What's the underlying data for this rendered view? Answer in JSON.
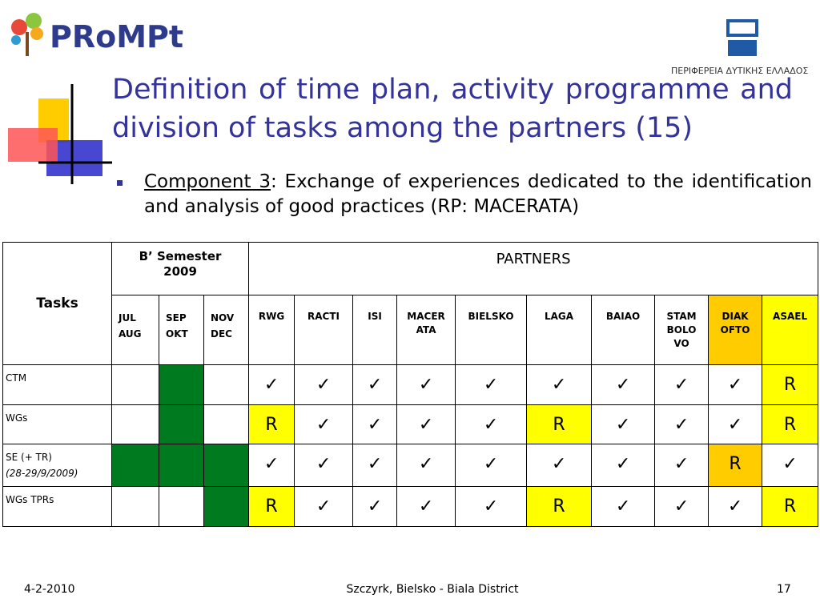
{
  "header": {
    "logo": "PRoMPt",
    "region": "ΠΕΡΙΦΕΡΕΙΑ ΔΥΤΙΚΗΣ ΕΛΛΑΔΟΣ",
    "title": "Definition of time plan, activity programme and division of tasks among the partners (15)"
  },
  "bullet": {
    "link": "Component 3",
    "text": ": Exchange of experiences dedicated to the identification and analysis of good practices (RP: MACERATA)"
  },
  "table": {
    "tasks_header": "Tasks",
    "semester_header": [
      "B’  Semester",
      "2009"
    ],
    "partners_header": "PARTNERS",
    "months": [
      [
        "JUL",
        "AUG"
      ],
      [
        "SEP",
        "OKT"
      ],
      [
        "NOV",
        "DEC"
      ]
    ],
    "partners": [
      {
        "name": [
          "RWG"
        ]
      },
      {
        "name": [
          "RACTI"
        ]
      },
      {
        "name": [
          "ISI"
        ]
      },
      {
        "name": [
          "MACER",
          "ATA"
        ]
      },
      {
        "name": [
          "BIELSKO"
        ]
      },
      {
        "name": [
          "LAGA"
        ]
      },
      {
        "name": [
          "BAIAO"
        ]
      },
      {
        "name": [
          "STAM",
          "BOLO",
          "VO"
        ]
      },
      {
        "name": [
          "DIAK",
          "OFTO"
        ],
        "color": "#ffcc00"
      },
      {
        "name": [
          "ASAEL"
        ],
        "color": "#ffff00"
      }
    ],
    "month_color": "#007a1e",
    "r_color": "#ffff00",
    "rows": [
      {
        "label": [
          "CTM"
        ],
        "months": [
          false,
          true,
          false
        ],
        "cells": [
          "✓",
          "✓",
          "✓",
          "✓",
          "✓",
          "✓",
          "✓",
          "✓",
          "✓",
          "R"
        ]
      },
      {
        "label": [
          "WGs"
        ],
        "months": [
          false,
          true,
          false
        ],
        "cells": [
          "R",
          "✓",
          "✓",
          "✓",
          "✓",
          "R",
          "✓",
          "✓",
          "✓",
          "R"
        ]
      },
      {
        "label": [
          "SE (+ TR)",
          "(28-29/9/2009)"
        ],
        "months": [
          true,
          true,
          true
        ],
        "cells": [
          "✓",
          "✓",
          "✓",
          "✓",
          "✓",
          "✓",
          "✓",
          "✓",
          "R",
          "✓"
        ]
      },
      {
        "label": [
          "WGs TPRs"
        ],
        "months": [
          false,
          false,
          true
        ],
        "cells": [
          "R",
          "✓",
          "✓",
          "✓",
          "✓",
          "R",
          "✓",
          "✓",
          "✓",
          "R"
        ]
      }
    ]
  },
  "footer": {
    "date": "4-2-2010",
    "place": "Szczyrk, Bielsko - Biala District",
    "page": "17"
  }
}
